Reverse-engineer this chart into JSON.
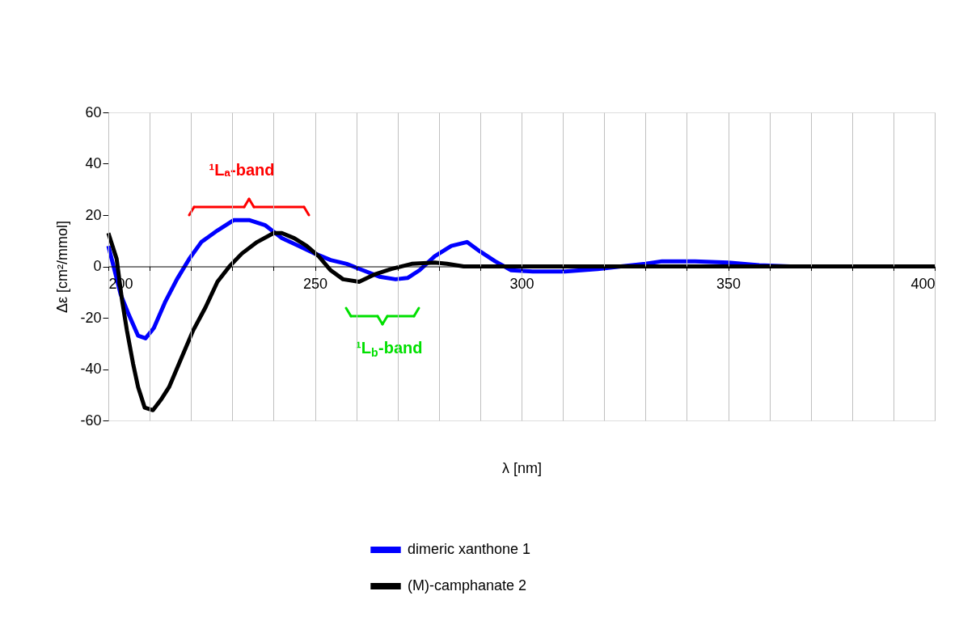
{
  "chart_data": {
    "type": "line",
    "xlabel": "λ [nm]",
    "ylabel": "Δε [cm²/mmol]",
    "xlim": [
      200,
      400
    ],
    "ylim": [
      -60,
      60
    ],
    "xticks": [
      200,
      {
        "value": 210,
        "label": null
      },
      {
        "value": 220,
        "label": null
      },
      {
        "value": 230,
        "label": null
      },
      {
        "value": 240,
        "label": null
      },
      250,
      {
        "value": 260,
        "label": null
      },
      {
        "value": 270,
        "label": null
      },
      {
        "value": 280,
        "label": null
      },
      {
        "value": 290,
        "label": null
      },
      300,
      {
        "value": 310,
        "label": null
      },
      {
        "value": 320,
        "label": null
      },
      {
        "value": 330,
        "label": null
      },
      {
        "value": 340,
        "label": null
      },
      350,
      {
        "value": 360,
        "label": null
      },
      {
        "value": 370,
        "label": null
      },
      {
        "value": 380,
        "label": null
      },
      {
        "value": 390,
        "label": null
      },
      400
    ],
    "yticks": [
      -60,
      -40,
      -20,
      0,
      20,
      40,
      60
    ],
    "grid": "x",
    "legend": "bottom",
    "marker": "none",
    "line_style": "solid",
    "annotations": [
      "¹Lₐ-band",
      "¹L$_{b}$-band"
    ],
    "series": [
      {
        "name": "dimeric xanthone 1",
        "color": "#0000ff",
        "x": [
          200,
          203,
          205,
          207.2,
          209,
          211,
          213.7,
          216.6,
          219.6,
          222.5,
          226.4,
          230.3,
          234.2,
          238,
          242,
          246,
          250,
          253.8,
          257.7,
          261.6,
          265.6,
          269.5,
          272.4,
          275.3,
          279,
          283,
          286.8,
          289.8,
          293.6,
          297.5,
          302.7,
          310.5,
          318.4,
          324,
          330,
          334,
          342,
          350,
          357.5,
          365,
          400
        ],
        "values": [
          8,
          -11,
          -19,
          -27,
          -28,
          -24,
          -14,
          -5,
          3,
          9.5,
          14,
          18,
          18,
          16,
          11,
          8,
          5,
          2.5,
          1,
          -1.5,
          -4,
          -5,
          -4.5,
          -1.5,
          4,
          8,
          9.5,
          6,
          2,
          -1.5,
          -2,
          -2,
          -1,
          0,
          1,
          2,
          2,
          1.5,
          0.5,
          0,
          0
        ]
      },
      {
        "name": "(M)-camphanate 2",
        "color": "#000000",
        "x": [
          200,
          202,
          203.3,
          204.5,
          206,
          207.2,
          208.8,
          210.8,
          212.7,
          214.7,
          217.6,
          220.5,
          223.5,
          226.4,
          229.3,
          232.3,
          236,
          240,
          242,
          245,
          248,
          250.9,
          253.8,
          256.8,
          260.7,
          264.6,
          268.5,
          273.4,
          279,
          282,
          286,
          295,
          310.5,
          400
        ],
        "values": [
          13,
          3,
          -13,
          -25,
          -38,
          -47,
          -55,
          -56,
          -52,
          -47,
          -36,
          -25,
          -16,
          -6,
          0,
          5,
          9.5,
          13,
          13,
          11,
          8,
          4,
          -1.5,
          -5,
          -6,
          -3,
          -1,
          1,
          1.5,
          1,
          0,
          0,
          0,
          0
        ]
      }
    ]
  }
}
